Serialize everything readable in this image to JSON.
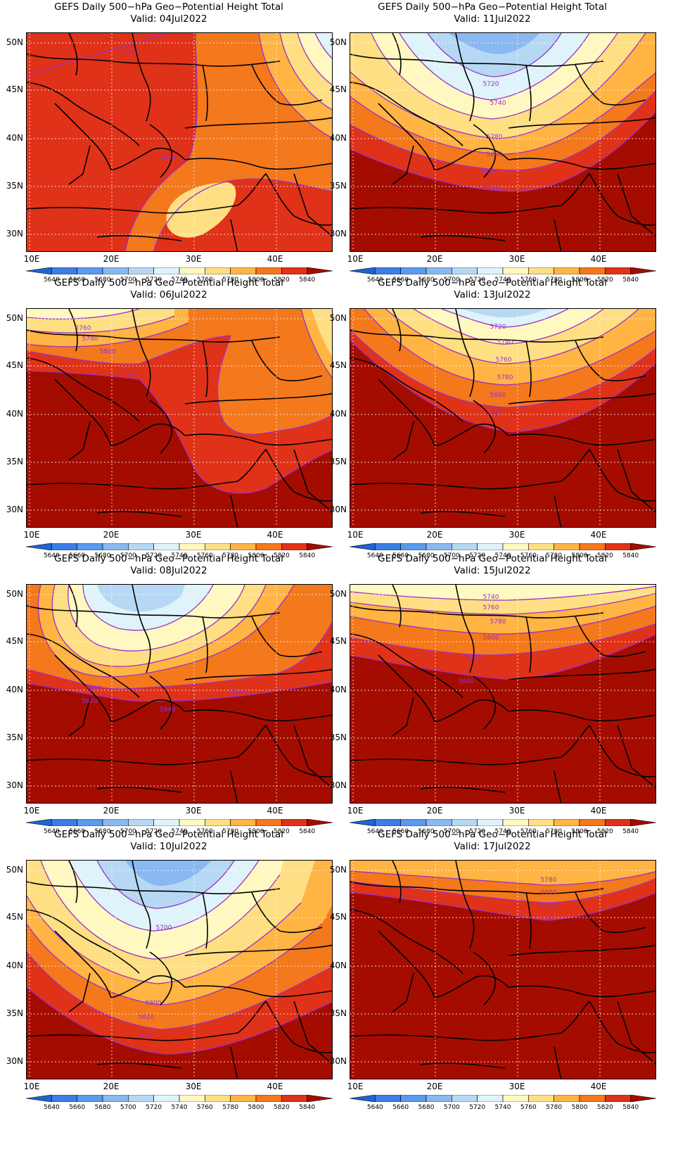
{
  "panels": [
    {
      "title": "GEFS Daily 500−hPa Geo−Potential Height Total",
      "valid": "Valid: 04Jul2022",
      "contour_labels": [
        "5800",
        "5820"
      ]
    },
    {
      "title": "GEFS Daily 500−hPa Geo−Potential Height Total",
      "valid": "Valid: 11Jul2022",
      "contour_labels": [
        "5720",
        "5740",
        "5780",
        "5800",
        "5820",
        "5840"
      ]
    },
    {
      "title": "GEFS Daily 500−hPa Geo−Potential Height Total",
      "valid": "Valid: 06Jul2022",
      "contour_labels": [
        "5760",
        "5780",
        "5800",
        "5820"
      ]
    },
    {
      "title": "GEFS Daily 500−hPa Geo−Potential Height Total",
      "valid": "Valid: 13Jul2022",
      "contour_labels": [
        "5720",
        "5740",
        "5760",
        "5780",
        "5800",
        "5820"
      ]
    },
    {
      "title": "GEFS Daily 500−hPa Geo−Potential Height Total",
      "valid": "Valid: 08Jul2022",
      "contour_labels": [
        "5800",
        "5820",
        "5820",
        "5840"
      ]
    },
    {
      "title": "GEFS Daily 500−hPa Geo−Potential Height Total",
      "valid": "Valid: 15Jul2022",
      "contour_labels": [
        "5740",
        "5760",
        "5780",
        "5800",
        "5820",
        "5840"
      ]
    },
    {
      "title": "GEFS Daily 500−hPa Geo−Potential Height Total",
      "valid": "Valid: 10Jul2022",
      "contour_labels": [
        "5700",
        "5800",
        "5820",
        "5840"
      ]
    },
    {
      "title": "GEFS Daily 500−hPa Geo−Potential Height Total",
      "valid": "Valid: 17Jul2022",
      "contour_labels": [
        "5780",
        "5800",
        "5820",
        "5840"
      ]
    }
  ],
  "axes": {
    "lat_labels": [
      "50N",
      "45N",
      "40N",
      "35N",
      "30N"
    ],
    "lon_labels": [
      "10E",
      "20E",
      "30E",
      "40E"
    ]
  },
  "colorbar": {
    "labels": [
      "5640",
      "5660",
      "5680",
      "5700",
      "5720",
      "5740",
      "5760",
      "5780",
      "5800",
      "5820",
      "5840"
    ],
    "colors": [
      "#1e64d2",
      "#3a7ee4",
      "#5a9af0",
      "#8ab8f0",
      "#b6d8f4",
      "#dff3fa",
      "#fff8c0",
      "#ffdf84",
      "#ffb444",
      "#f4781c",
      "#e03218",
      "#a50c00"
    ]
  },
  "contour_line_color": "#9b30c8",
  "coastline_color": "#000000"
}
